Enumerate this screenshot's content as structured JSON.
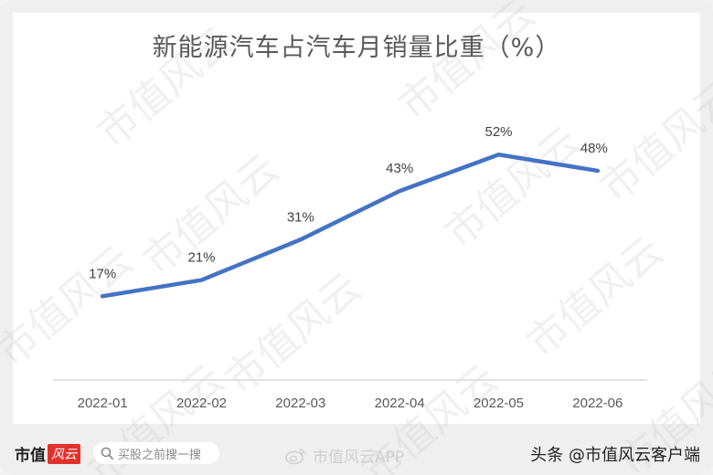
{
  "chart_title": "新能源汽车占汽车月销量比重（%）",
  "chart_data": {
    "type": "line",
    "title": "新能源汽车占汽车月销量比重（%）",
    "xlabel": "",
    "ylabel": "",
    "categories": [
      "2022-01",
      "2022-02",
      "2022-03",
      "2022-04",
      "2022-05",
      "2022-06"
    ],
    "series": [
      {
        "name": "新能源汽车占汽车月销量比重",
        "values": [
          17,
          21,
          31,
          43,
          52,
          48
        ],
        "labels": [
          "17%",
          "21%",
          "31%",
          "43%",
          "52%",
          "48%"
        ],
        "color": "#4472c4"
      }
    ],
    "grid": false,
    "legend": "none",
    "data_labels": true
  },
  "watermark": "市值风云",
  "footer": {
    "brand_text": "市值",
    "brand_badge": "风云",
    "search_placeholder": "买股之前搜一搜",
    "weibo_handle": "市值风云APP",
    "credit": "头条 @市值风云客户端"
  },
  "colors": {
    "line": "#4472c4",
    "axis": "#d9d9d9",
    "text": "#595959",
    "brand_red": "#e0312d"
  }
}
